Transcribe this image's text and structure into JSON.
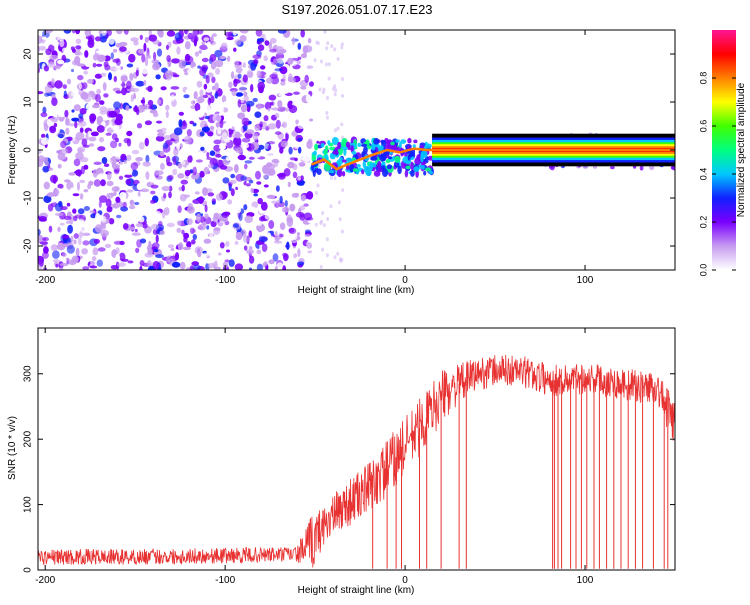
{
  "title": "S197.2026.051.07.17.E23",
  "chart_data": [
    {
      "type": "heatmap",
      "xlabel": "Height of straight line (km)",
      "ylabel": "Frequency (Hz)",
      "xlim": [
        -204,
        150
      ],
      "ylim": [
        -25,
        25
      ],
      "xticks": [
        -200,
        -100,
        0,
        100
      ],
      "yticks": [
        -20,
        -10,
        0,
        10,
        20
      ],
      "colorbar": {
        "label": "Normalized spectral amplitude",
        "range": [
          0.0,
          1.0
        ],
        "ticks": [
          "0.0",
          "0.2",
          "0.4",
          "0.6",
          "0.8"
        ],
        "colors": [
          "#ffffff",
          "#c79bf0",
          "#7a00ff",
          "#1020ff",
          "#00c8ff",
          "#00ff80",
          "#40ff00",
          "#ffff00",
          "#ff8000",
          "#ff0000",
          "#ff1493"
        ]
      },
      "regions": [
        {
          "x": [
            -204,
            -52
          ],
          "freq_range": [
            -25,
            25
          ],
          "amplitude": "0.0-0.3",
          "note": "dense noise"
        },
        {
          "x": [
            -52,
            15
          ],
          "freq_range": [
            -5,
            2
          ],
          "amplitude": "0.2-0.6"
        },
        {
          "x": [
            15,
            150
          ],
          "freq": 0,
          "amplitude": "0.9-1.0"
        },
        {
          "x": [
            78,
            150
          ],
          "freq_range": [
            -4,
            3
          ],
          "amplitude": "0.1-0.3"
        }
      ],
      "ridge": {
        "x": [
          -52,
          -45,
          -38,
          -32,
          -25,
          -18,
          -10,
          -3,
          5,
          12,
          150
        ],
        "freq": [
          -3,
          -2,
          -4,
          -3,
          -2,
          -1,
          0,
          -0.5,
          0.3,
          0,
          0
        ]
      }
    },
    {
      "type": "line",
      "xlabel": "Height of straight line (km)",
      "ylabel": "SNR (10 * v/v)",
      "xlim": [
        -204,
        150
      ],
      "ylim": [
        0,
        370
      ],
      "xticks": [
        -200,
        -100,
        0,
        100
      ],
      "yticks": [
        0,
        100,
        200,
        300
      ],
      "series": [
        {
          "color": "#e83232",
          "envelope_x": [
            -204,
            -150,
            -100,
            -60,
            -52,
            -45,
            -35,
            -20,
            -10,
            0,
            10,
            20,
            30,
            40,
            50,
            60,
            70,
            80,
            90,
            100,
            110,
            120,
            130,
            140,
            150
          ],
          "envelope_mean": [
            20,
            20,
            22,
            24,
            40,
            70,
            95,
            125,
            155,
            190,
            225,
            265,
            285,
            300,
            305,
            305,
            300,
            290,
            290,
            295,
            290,
            285,
            280,
            280,
            220
          ],
          "envelope_spread": [
            12,
            12,
            12,
            12,
            45,
            30,
            35,
            40,
            45,
            45,
            45,
            40,
            30,
            25,
            25,
            25,
            25,
            25,
            25,
            25,
            25,
            25,
            25,
            25,
            40
          ],
          "dropouts_x": [
            -18,
            -10,
            -5,
            -2,
            8,
            12,
            20,
            30,
            34,
            82,
            83,
            85,
            87,
            92,
            95,
            98,
            101,
            105,
            108,
            112,
            116,
            120,
            124,
            128,
            132,
            138,
            144,
            146
          ]
        }
      ]
    }
  ]
}
